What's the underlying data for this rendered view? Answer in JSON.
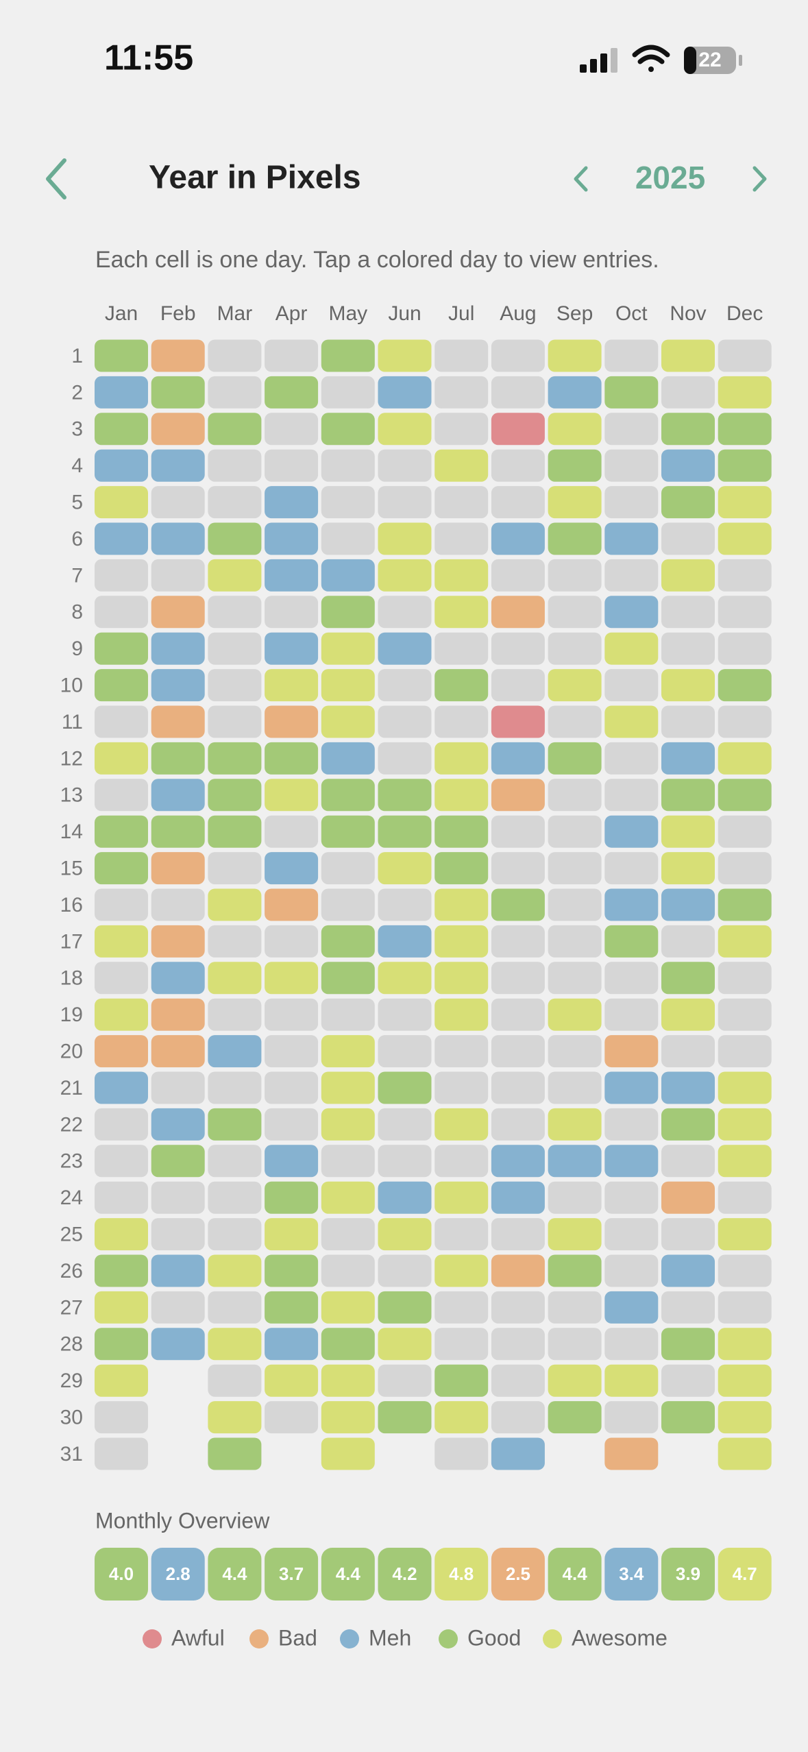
{
  "status_bar": {
    "time": "11:55",
    "battery": 22
  },
  "header": {
    "title": "Year in Pixels",
    "year": "2025"
  },
  "subtitle": "Each cell is one day. Tap a colored day to view entries.",
  "grid": {
    "days": [
      1,
      2,
      3,
      4,
      5,
      6,
      7,
      8,
      9,
      10,
      11,
      12,
      13,
      14,
      15,
      16,
      17,
      18,
      19,
      20,
      21,
      22,
      23,
      24,
      25,
      26,
      27,
      28,
      29,
      30,
      31
    ],
    "empty_color": "#d6d6d6",
    "months": [
      {
        "name": "Jan",
        "levels": [
          3,
          2,
          3,
          2,
          4,
          2,
          null,
          null,
          3,
          3,
          null,
          4,
          null,
          3,
          3,
          null,
          4,
          null,
          4,
          1,
          2,
          null,
          null,
          null,
          4,
          3,
          4,
          3,
          4,
          null,
          null
        ]
      },
      {
        "name": "Feb",
        "levels": [
          1,
          3,
          1,
          2,
          null,
          2,
          null,
          1,
          2,
          2,
          1,
          3,
          2,
          3,
          1,
          null,
          1,
          2,
          1,
          1,
          null,
          2,
          3,
          null,
          null,
          2,
          null,
          2
        ]
      },
      {
        "name": "Mar",
        "levels": [
          null,
          null,
          3,
          null,
          null,
          3,
          4,
          null,
          null,
          null,
          null,
          3,
          3,
          3,
          null,
          4,
          null,
          4,
          null,
          2,
          null,
          3,
          null,
          null,
          null,
          4,
          null,
          4,
          null,
          4,
          3
        ]
      },
      {
        "name": "Apr",
        "levels": [
          null,
          3,
          null,
          null,
          2,
          2,
          2,
          null,
          2,
          4,
          1,
          3,
          4,
          null,
          2,
          1,
          null,
          4,
          null,
          null,
          null,
          null,
          2,
          3,
          4,
          3,
          3,
          2,
          4,
          null
        ]
      },
      {
        "name": "May",
        "levels": [
          3,
          null,
          3,
          null,
          null,
          null,
          2,
          3,
          4,
          4,
          4,
          2,
          3,
          3,
          null,
          null,
          3,
          3,
          null,
          4,
          4,
          4,
          null,
          4,
          null,
          null,
          4,
          3,
          4,
          4,
          4
        ]
      },
      {
        "name": "Jun",
        "levels": [
          4,
          2,
          4,
          null,
          null,
          4,
          4,
          null,
          2,
          null,
          null,
          null,
          3,
          3,
          4,
          null,
          2,
          4,
          null,
          null,
          3,
          null,
          null,
          2,
          4,
          null,
          3,
          4,
          null,
          3
        ]
      },
      {
        "name": "Jul",
        "levels": [
          null,
          null,
          null,
          4,
          null,
          null,
          4,
          4,
          null,
          3,
          null,
          4,
          4,
          3,
          3,
          4,
          4,
          4,
          4,
          null,
          null,
          4,
          null,
          4,
          null,
          4,
          null,
          null,
          3,
          4,
          null
        ]
      },
      {
        "name": "Aug",
        "levels": [
          null,
          null,
          0,
          null,
          null,
          2,
          null,
          1,
          null,
          null,
          0,
          2,
          1,
          null,
          null,
          3,
          null,
          null,
          null,
          null,
          null,
          null,
          2,
          2,
          null,
          1,
          null,
          null,
          null,
          null,
          2
        ]
      },
      {
        "name": "Sep",
        "levels": [
          4,
          2,
          4,
          3,
          4,
          3,
          null,
          null,
          null,
          4,
          null,
          3,
          null,
          null,
          null,
          null,
          null,
          null,
          4,
          null,
          null,
          4,
          2,
          null,
          4,
          3,
          null,
          null,
          4,
          3
        ]
      },
      {
        "name": "Oct",
        "levels": [
          null,
          3,
          null,
          null,
          null,
          2,
          null,
          2,
          4,
          null,
          4,
          null,
          null,
          2,
          null,
          2,
          3,
          null,
          null,
          1,
          2,
          null,
          2,
          null,
          null,
          null,
          2,
          null,
          4,
          null,
          1
        ]
      },
      {
        "name": "Nov",
        "levels": [
          4,
          null,
          3,
          2,
          3,
          null,
          4,
          null,
          null,
          4,
          null,
          2,
          3,
          4,
          4,
          2,
          null,
          3,
          4,
          null,
          2,
          3,
          null,
          1,
          null,
          2,
          null,
          3,
          null,
          3
        ]
      },
      {
        "name": "Dec",
        "levels": [
          null,
          4,
          3,
          3,
          4,
          4,
          null,
          null,
          null,
          3,
          null,
          4,
          3,
          null,
          null,
          3,
          4,
          null,
          null,
          null,
          4,
          4,
          4,
          null,
          4,
          null,
          null,
          4,
          4,
          4,
          4
        ]
      }
    ]
  },
  "overview": {
    "title": "Monthly Overview",
    "values": [
      4.0,
      2.8,
      4.4,
      3.7,
      4.4,
      4.2,
      4.8,
      2.5,
      4.4,
      3.4,
      3.9,
      4.7
    ],
    "value_labels": [
      "4.0",
      "2.8",
      "4.4",
      "3.7",
      "4.4",
      "4.2",
      "4.8",
      "2.5",
      "4.4",
      "3.4",
      "3.9",
      "4.7"
    ],
    "levels": [
      3,
      2,
      3,
      3,
      3,
      3,
      4,
      1,
      3,
      2,
      3,
      4
    ]
  },
  "legend": [
    {
      "name": "Awful",
      "color": "#df8b8e"
    },
    {
      "name": "Bad",
      "color": "#e9b07f"
    },
    {
      "name": "Meh",
      "color": "#86b2d0"
    },
    {
      "name": "Good",
      "color": "#a3c977"
    },
    {
      "name": "Awesome",
      "color": "#d7df76"
    }
  ]
}
